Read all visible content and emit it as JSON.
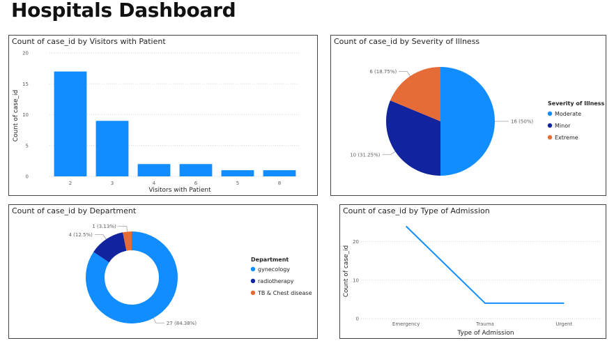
{
  "page": {
    "title": "Hospitals Dashboard"
  },
  "chart_data": [
    {
      "type": "bar",
      "title": "Count of case_id by Visitors with Patient",
      "xlabel": "Visitors with Patient",
      "ylabel": "Count of case_id",
      "categories": [
        "2",
        "3",
        "4",
        "6",
        "5",
        "8"
      ],
      "values": [
        17,
        9,
        2,
        2,
        1,
        1
      ],
      "ylim": [
        0,
        20
      ],
      "yticks": [
        0,
        5,
        10,
        15,
        20
      ],
      "grid": true,
      "color": "#118DFF"
    },
    {
      "type": "pie",
      "title": "Count of case_id by Severity of Illness",
      "legend_title": "Severity of Illness",
      "legend_position": "right",
      "slices": [
        {
          "label": "Moderate",
          "value": 16,
          "data_label": "16 (50%)",
          "color": "#118DFF"
        },
        {
          "label": "Minor",
          "value": 10,
          "data_label": "10 (31.25%)",
          "color": "#12239E"
        },
        {
          "label": "Extreme",
          "value": 6,
          "data_label": "6 (18.75%)",
          "color": "#E66C37"
        }
      ]
    },
    {
      "type": "pie",
      "donut": true,
      "title": "Count of case_id by Department",
      "legend_title": "Department",
      "legend_position": "right",
      "slices": [
        {
          "label": "gynecology",
          "value": 27,
          "data_label": "27 (84.38%)",
          "color": "#118DFF"
        },
        {
          "label": "radiotherapy",
          "value": 4,
          "data_label": "4 (12.5%)",
          "color": "#12239E"
        },
        {
          "label": "TB & Chest disease",
          "value": 1,
          "data_label": "1 (3.13%)",
          "color": "#E66C37"
        }
      ]
    },
    {
      "type": "line",
      "title": "Count of case_id by Type of Admission",
      "xlabel": "Type of Admission",
      "ylabel": "Count of case_id",
      "categories": [
        "Emergency",
        "Trauma",
        "Urgent"
      ],
      "values": [
        24,
        4,
        4
      ],
      "ylim": [
        0,
        25
      ],
      "yticks": [
        0,
        10,
        20
      ],
      "grid": true,
      "color": "#118DFF"
    }
  ]
}
